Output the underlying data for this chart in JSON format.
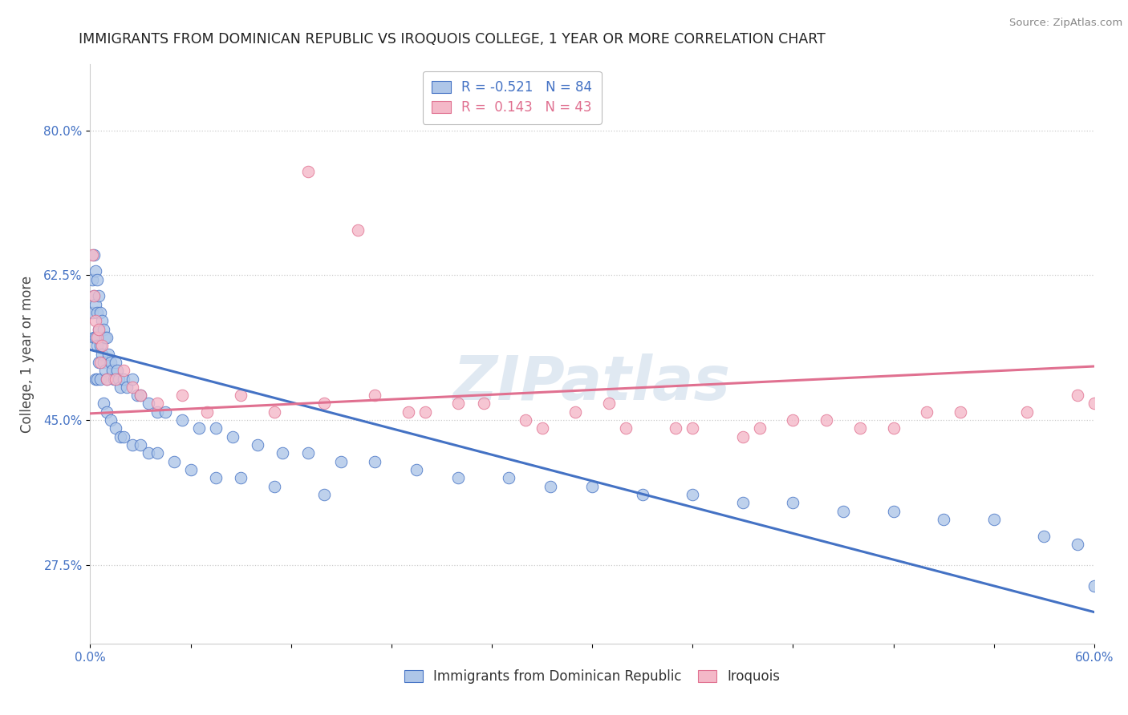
{
  "title": "IMMIGRANTS FROM DOMINICAN REPUBLIC VS IROQUOIS COLLEGE, 1 YEAR OR MORE CORRELATION CHART",
  "source": "Source: ZipAtlas.com",
  "ylabel": "College, 1 year or more",
  "xlim": [
    0.0,
    0.6
  ],
  "ylim": [
    0.18,
    0.88
  ],
  "xticks": [
    0.0,
    0.06,
    0.12,
    0.18,
    0.24,
    0.3,
    0.36,
    0.42,
    0.48,
    0.54,
    0.6
  ],
  "xticklabels": [
    "0.0%",
    "",
    "",
    "",
    "",
    "",
    "",
    "",
    "",
    "",
    "60.0%"
  ],
  "ytick_positions": [
    0.275,
    0.45,
    0.625,
    0.8
  ],
  "ytick_labels": [
    "27.5%",
    "45.0%",
    "62.5%",
    "80.0%"
  ],
  "blue_R": -0.521,
  "blue_N": 84,
  "pink_R": 0.143,
  "pink_N": 43,
  "blue_color": "#aec6e8",
  "pink_color": "#f4b8c8",
  "blue_line_color": "#4472c4",
  "pink_line_color": "#e07090",
  "legend_label_blue": "Immigrants from Dominican Republic",
  "legend_label_pink": "Iroquois",
  "watermark": "ZIPatlas",
  "blue_scatter_x": [
    0.001,
    0.001,
    0.002,
    0.002,
    0.002,
    0.003,
    0.003,
    0.003,
    0.003,
    0.004,
    0.004,
    0.004,
    0.004,
    0.005,
    0.005,
    0.005,
    0.006,
    0.006,
    0.006,
    0.007,
    0.007,
    0.008,
    0.008,
    0.009,
    0.009,
    0.01,
    0.01,
    0.011,
    0.012,
    0.013,
    0.014,
    0.015,
    0.016,
    0.017,
    0.018,
    0.02,
    0.022,
    0.025,
    0.028,
    0.03,
    0.035,
    0.04,
    0.045,
    0.055,
    0.065,
    0.075,
    0.085,
    0.1,
    0.115,
    0.13,
    0.15,
    0.17,
    0.195,
    0.22,
    0.25,
    0.275,
    0.3,
    0.33,
    0.36,
    0.39,
    0.42,
    0.45,
    0.48,
    0.51,
    0.54,
    0.57,
    0.59,
    0.6,
    0.008,
    0.01,
    0.012,
    0.015,
    0.018,
    0.02,
    0.025,
    0.03,
    0.035,
    0.04,
    0.05,
    0.06,
    0.075,
    0.09,
    0.11,
    0.14
  ],
  "blue_scatter_y": [
    0.62,
    0.58,
    0.65,
    0.6,
    0.55,
    0.63,
    0.59,
    0.55,
    0.5,
    0.62,
    0.58,
    0.54,
    0.5,
    0.6,
    0.56,
    0.52,
    0.58,
    0.54,
    0.5,
    0.57,
    0.53,
    0.56,
    0.52,
    0.55,
    0.51,
    0.55,
    0.5,
    0.53,
    0.52,
    0.51,
    0.5,
    0.52,
    0.51,
    0.5,
    0.49,
    0.5,
    0.49,
    0.5,
    0.48,
    0.48,
    0.47,
    0.46,
    0.46,
    0.45,
    0.44,
    0.44,
    0.43,
    0.42,
    0.41,
    0.41,
    0.4,
    0.4,
    0.39,
    0.38,
    0.38,
    0.37,
    0.37,
    0.36,
    0.36,
    0.35,
    0.35,
    0.34,
    0.34,
    0.33,
    0.33,
    0.31,
    0.3,
    0.25,
    0.47,
    0.46,
    0.45,
    0.44,
    0.43,
    0.43,
    0.42,
    0.42,
    0.41,
    0.41,
    0.4,
    0.39,
    0.38,
    0.38,
    0.37,
    0.36
  ],
  "pink_scatter_x": [
    0.001,
    0.002,
    0.003,
    0.004,
    0.005,
    0.006,
    0.007,
    0.01,
    0.015,
    0.02,
    0.025,
    0.03,
    0.04,
    0.055,
    0.07,
    0.09,
    0.11,
    0.14,
    0.17,
    0.2,
    0.235,
    0.27,
    0.31,
    0.35,
    0.4,
    0.44,
    0.48,
    0.52,
    0.56,
    0.59,
    0.6,
    0.13,
    0.16,
    0.19,
    0.22,
    0.26,
    0.29,
    0.32,
    0.36,
    0.39,
    0.42,
    0.46,
    0.5
  ],
  "pink_scatter_y": [
    0.65,
    0.6,
    0.57,
    0.55,
    0.56,
    0.52,
    0.54,
    0.5,
    0.5,
    0.51,
    0.49,
    0.48,
    0.47,
    0.48,
    0.46,
    0.48,
    0.46,
    0.47,
    0.48,
    0.46,
    0.47,
    0.44,
    0.47,
    0.44,
    0.44,
    0.45,
    0.44,
    0.46,
    0.46,
    0.48,
    0.47,
    0.75,
    0.68,
    0.46,
    0.47,
    0.45,
    0.46,
    0.44,
    0.44,
    0.43,
    0.45,
    0.44,
    0.46
  ],
  "blue_trend_y_start": 0.535,
  "blue_trend_y_end": 0.218,
  "pink_trend_y_start": 0.458,
  "pink_trend_y_end": 0.515
}
